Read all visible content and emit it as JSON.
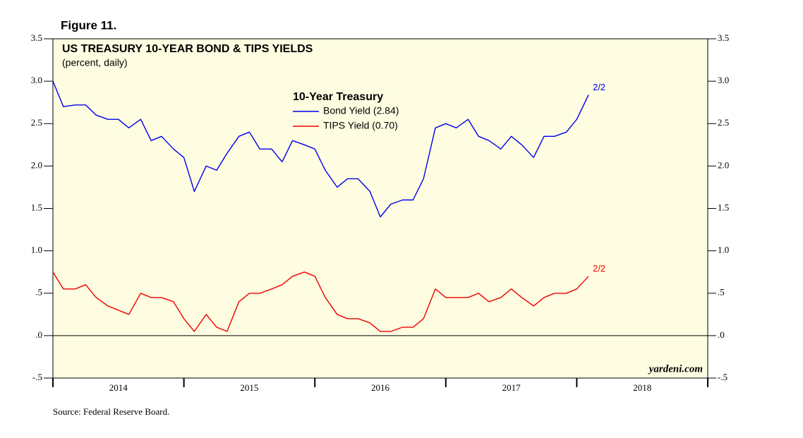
{
  "chart_data": {
    "type": "line",
    "figure_label": "Figure 11.",
    "title": "US TREASURY 10-YEAR BOND & TIPS YIELDS",
    "subtitle": "(percent, daily)",
    "legend_title": "10-Year Treasury",
    "watermark": "yardeni.com",
    "source": "Source: Federal Reserve Board.",
    "background": "#fffde1",
    "reference_line": 0,
    "xlim": [
      2014,
      2019
    ],
    "xticks": [
      2014,
      2015,
      2016,
      2017,
      2018,
      2019
    ],
    "ylim": [
      -0.5,
      3.5
    ],
    "yticks": [
      {
        "value": -0.5,
        "label": "-.5"
      },
      {
        "value": 0,
        "label": ".0"
      },
      {
        "value": 0.5,
        "label": ".5"
      },
      {
        "value": 1,
        "label": "1.0"
      },
      1.5,
      {
        "value": 2,
        "label": "2.0"
      },
      2.5,
      {
        "value": 3,
        "label": "3.0"
      },
      3.5
    ],
    "y2lim": [
      -0.5,
      3.5
    ],
    "y2ticks": [
      {
        "value": -0.5,
        "label": "-.5"
      },
      {
        "value": 0,
        "label": ".0"
      },
      {
        "value": 0.5,
        "label": ".5"
      },
      {
        "value": 1,
        "label": "1.0"
      },
      1.5,
      {
        "value": 2,
        "label": "2.0"
      },
      2.5,
      {
        "value": 3,
        "label": "3.0"
      },
      3.5
    ],
    "x": [
      2014.0,
      2014.08,
      2014.17,
      2014.25,
      2014.33,
      2014.42,
      2014.5,
      2014.58,
      2014.67,
      2014.75,
      2014.83,
      2014.92,
      2015.0,
      2015.08,
      2015.17,
      2015.25,
      2015.33,
      2015.42,
      2015.5,
      2015.58,
      2015.67,
      2015.75,
      2015.83,
      2015.92,
      2016.0,
      2016.08,
      2016.17,
      2016.25,
      2016.33,
      2016.42,
      2016.5,
      2016.58,
      2016.67,
      2016.75,
      2016.83,
      2016.92,
      2017.0,
      2017.08,
      2017.17,
      2017.25,
      2017.33,
      2017.42,
      2017.5,
      2017.58,
      2017.67,
      2017.75,
      2017.83,
      2017.92,
      2018.0,
      2018.09
    ],
    "series": [
      {
        "name": "Bond Yield (2.84)",
        "color": "#0000ee",
        "end_label": "2/2",
        "values": [
          3.0,
          2.7,
          2.72,
          2.72,
          2.6,
          2.55,
          2.55,
          2.45,
          2.55,
          2.3,
          2.35,
          2.2,
          2.1,
          1.7,
          2.0,
          1.95,
          2.15,
          2.35,
          2.4,
          2.2,
          2.2,
          2.05,
          2.3,
          2.25,
          2.2,
          1.95,
          1.75,
          1.85,
          1.85,
          1.7,
          1.4,
          1.55,
          1.6,
          1.6,
          1.85,
          2.45,
          2.5,
          2.45,
          2.55,
          2.35,
          2.3,
          2.2,
          2.35,
          2.25,
          2.1,
          2.35,
          2.35,
          2.4,
          2.55,
          2.84
        ]
      },
      {
        "name": "TIPS Yield (0.70)",
        "color": "#ee0000",
        "end_label": "2/2",
        "values": [
          0.75,
          0.55,
          0.55,
          0.6,
          0.45,
          0.35,
          0.3,
          0.25,
          0.5,
          0.45,
          0.45,
          0.4,
          0.2,
          0.05,
          0.25,
          0.1,
          0.05,
          0.4,
          0.5,
          0.5,
          0.55,
          0.6,
          0.7,
          0.75,
          0.7,
          0.45,
          0.25,
          0.2,
          0.2,
          0.15,
          0.05,
          0.05,
          0.1,
          0.1,
          0.2,
          0.55,
          0.45,
          0.45,
          0.45,
          0.5,
          0.4,
          0.45,
          0.55,
          0.45,
          0.35,
          0.45,
          0.5,
          0.5,
          0.55,
          0.7
        ]
      }
    ]
  }
}
